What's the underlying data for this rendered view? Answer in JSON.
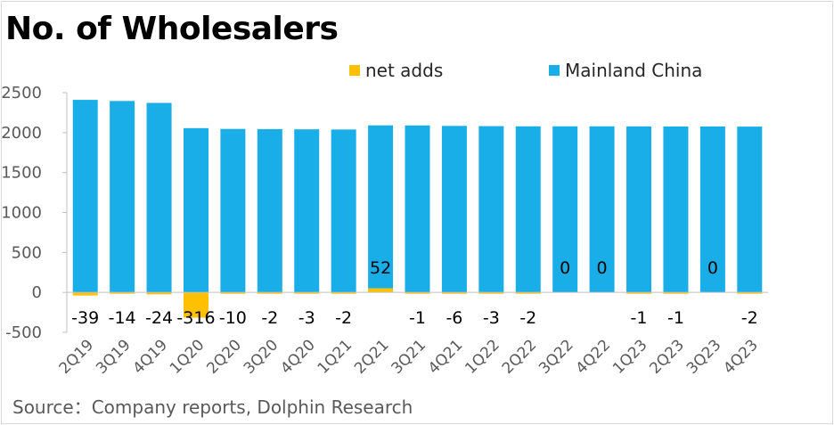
{
  "title": "No. of Wholesalers",
  "source": "Source：Company reports, Dolphin Research",
  "colors": {
    "mainland": "#1aaee8",
    "net_adds": "#ffc000"
  },
  "chart_data": {
    "type": "bar",
    "title": "No. of Wholesalers",
    "categories": [
      "2Q19",
      "3Q19",
      "4Q19",
      "1Q20",
      "2Q20",
      "3Q20",
      "4Q20",
      "1Q21",
      "2Q21",
      "3Q21",
      "4Q21",
      "1Q22",
      "2Q22",
      "3Q22",
      "4Q22",
      "1Q23",
      "2Q23",
      "3Q23",
      "4Q23"
    ],
    "series": [
      {
        "name": "net adds",
        "color": "#ffc000",
        "values": [
          -39,
          -14,
          -24,
          -316,
          -10,
          -2,
          -3,
          -2,
          52,
          -1,
          -6,
          -3,
          -2,
          0,
          0,
          -1,
          -1,
          0,
          -2
        ],
        "labels": [
          "-39",
          "-14",
          "-24",
          "-316",
          "-10",
          "-2",
          "-3",
          "-2",
          "52",
          "-1",
          "-6",
          "-3",
          "-2",
          "0",
          "0",
          "-1",
          "-1",
          "0",
          "-2"
        ]
      },
      {
        "name": "Mainland China",
        "color": "#1aaee8",
        "values": [
          2410,
          2396,
          2372,
          2056,
          2046,
          2044,
          2041,
          2039,
          2091,
          2090,
          2084,
          2081,
          2079,
          2079,
          2079,
          2078,
          2077,
          2077,
          2075
        ]
      }
    ],
    "ylim": [
      -500,
      2500
    ],
    "yticks": [
      "2500",
      "2000",
      "1500",
      "1000",
      "500",
      "0",
      "-500"
    ],
    "legend": "top-center",
    "grid": false
  }
}
